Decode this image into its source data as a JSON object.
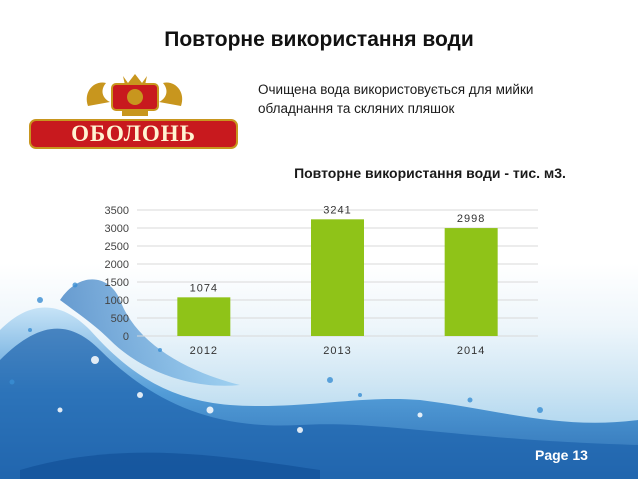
{
  "slide": {
    "title": "Повторне використання води",
    "description_lines": [
      "Очищена вода використовується для мийки",
      "обладнання та скляних пляшок"
    ],
    "page_number": "Page 13",
    "logo_text": "ОБОЛОНЬ"
  },
  "chart_data": {
    "type": "bar",
    "title": "Повторне використання води - тис. м3.",
    "categories": [
      "2012",
      "2013",
      "2014"
    ],
    "values": [
      1074,
      3241,
      2998
    ],
    "data_labels": [
      "1074",
      "3241",
      "2998"
    ],
    "yticks": [
      "0",
      "500",
      "1000",
      "1500",
      "2000",
      "2500",
      "3000",
      "3500"
    ],
    "ylim": [
      0,
      3500
    ],
    "grid": true,
    "bar_color": "#8fc318"
  },
  "colors": {
    "logo_red": "#c8191e",
    "logo_gold": "#c8961e",
    "water_blue": "#2f7fc8"
  }
}
